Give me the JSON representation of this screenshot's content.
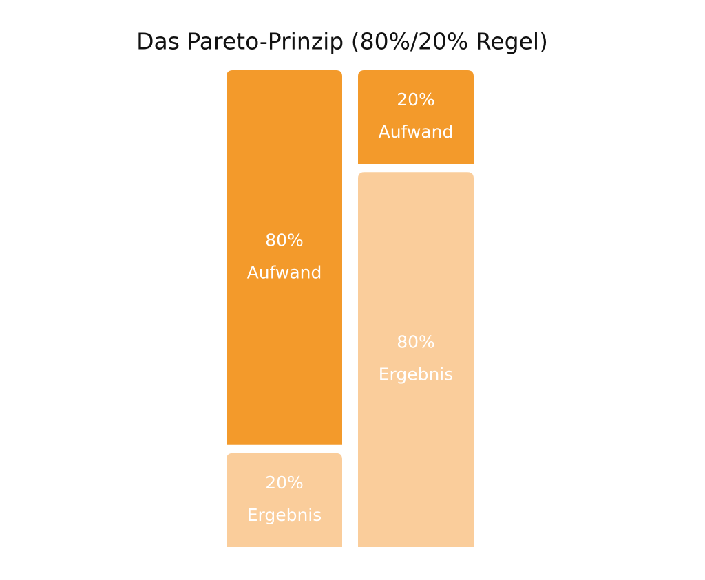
{
  "chart_data": {
    "type": "bar",
    "stacked": true,
    "title": "Das Pareto-Prinzip (80%/20% Regel)",
    "ylim": [
      0,
      100
    ],
    "series": [
      {
        "name": "Ergebnis",
        "color": "#facd9b",
        "values": [
          20,
          80
        ],
        "value_labels": [
          "20%",
          "80%"
        ]
      },
      {
        "name": "Aufwand",
        "color": "#f39a2b",
        "values": [
          80,
          20
        ],
        "value_labels": [
          "80%",
          "20%"
        ]
      }
    ]
  }
}
